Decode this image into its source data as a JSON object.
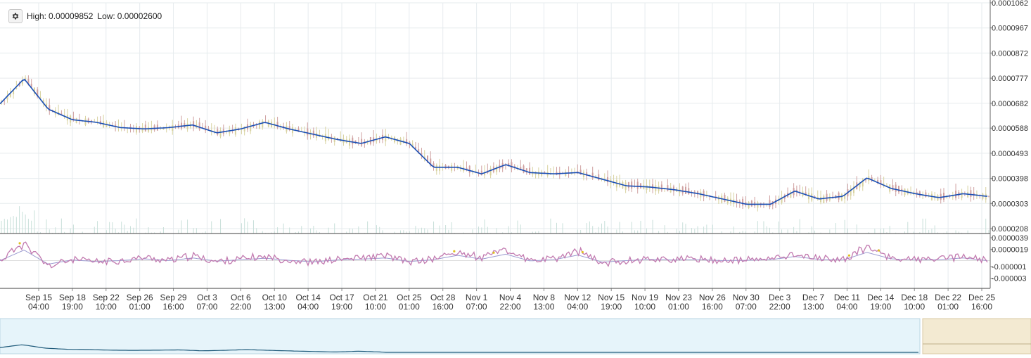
{
  "toolbar": {
    "settings_icon": "gear-icon",
    "high_label": "High:",
    "high_value": "0.00009852",
    "low_label": "Low:",
    "low_value": "0.00002600"
  },
  "colors": {
    "ma_line": "#1a4fb5",
    "candle_up": "#d8d2a0",
    "candle_down": "#cfa0a0",
    "volume": "#c9e0da",
    "osc_main": "#c27ab0",
    "osc_signal": "#9a9ad0",
    "osc_highlight": "#e0c020",
    "grid": "#e6ebee",
    "navigator_fill": "#e6f4fa",
    "navigator_line": "#1f5a7a",
    "navigator_handle": "#f3ead2"
  },
  "chart_data": [
    {
      "type": "line",
      "title": "",
      "y_axis_labels": [
        "0.0001062",
        "0.0000967",
        "0.0000872",
        "0.0000777",
        "0.0000682",
        "0.0000588",
        "0.0000493",
        "0.0000398",
        "0.0000303",
        "0.0000208"
      ],
      "ylim": [
        2.08e-05,
        0.0001062
      ],
      "x_labels": [
        {
          "date": "Sep 15",
          "time": "04:00"
        },
        {
          "date": "Sep 18",
          "time": "19:00"
        },
        {
          "date": "Sep 22",
          "time": "10:00"
        },
        {
          "date": "Sep 26",
          "time": "01:00"
        },
        {
          "date": "Sep 29",
          "time": "16:00"
        },
        {
          "date": "Oct 3",
          "time": "07:00"
        },
        {
          "date": "Oct 6",
          "time": "22:00"
        },
        {
          "date": "Oct 10",
          "time": "13:00"
        },
        {
          "date": "Oct 14",
          "time": "04:00"
        },
        {
          "date": "Oct 17",
          "time": "19:00"
        },
        {
          "date": "Oct 21",
          "time": "10:00"
        },
        {
          "date": "Oct 25",
          "time": "01:00"
        },
        {
          "date": "Oct 28",
          "time": "16:00"
        },
        {
          "date": "Nov 1",
          "time": "07:00"
        },
        {
          "date": "Nov 4",
          "time": "22:00"
        },
        {
          "date": "Nov 8",
          "time": "13:00"
        },
        {
          "date": "Nov 12",
          "time": "04:00"
        },
        {
          "date": "Nov 15",
          "time": "19:00"
        },
        {
          "date": "Nov 19",
          "time": "10:00"
        },
        {
          "date": "Nov 23",
          "time": "01:00"
        },
        {
          "date": "Nov 26",
          "time": "16:00"
        },
        {
          "date": "Nov 30",
          "time": "07:00"
        },
        {
          "date": "Dec 3",
          "time": "22:00"
        },
        {
          "date": "Dec 7",
          "time": "13:00"
        },
        {
          "date": "Dec 11",
          "time": "04:00"
        },
        {
          "date": "Dec 14",
          "time": "19:00"
        },
        {
          "date": "Dec 18",
          "time": "10:00"
        },
        {
          "date": "Dec 22",
          "time": "01:00"
        },
        {
          "date": "Dec 25",
          "time": "16:00"
        }
      ],
      "series": [
        {
          "values": [
            6.8e-05,
            7.75e-05,
            6.6e-05,
            6.2e-05,
            6.1e-05,
            5.9e-05,
            5.85e-05,
            5.9e-05,
            6e-05,
            5.7e-05,
            5.85e-05,
            6.1e-05,
            5.85e-05,
            5.65e-05,
            5.45e-05,
            5.3e-05,
            5.55e-05,
            5.3e-05,
            4.4e-05,
            4.4e-05,
            4.15e-05,
            4.5e-05,
            4.2e-05,
            4.15e-05,
            4.2e-05,
            3.95e-05,
            3.7e-05,
            3.65e-05,
            3.55e-05,
            3.4e-05,
            3.2e-05,
            3e-05,
            3e-05,
            3.5e-05,
            3.2e-05,
            3.3e-05,
            4e-05,
            3.6e-05,
            3.4e-05,
            3.25e-05,
            3.4e-05,
            3.3e-05
          ]
        }
      ]
    },
    {
      "type": "line",
      "title": "",
      "y_axis_labels": [
        "0.0000039",
        "0.0000019",
        "-0.000001",
        "-0.000003"
      ],
      "ylim": [
        -3.9e-06,
        3.9e-06
      ],
      "series": [
        {
          "values": [
            0.0,
            3.6e-06,
            -1.2e-06,
            2e-07,
            -3e-07,
            0.0,
            6e-07,
            0.0,
            9e-07,
            -2e-07,
            3e-07,
            8e-07,
            1e-07,
            -4e-07,
            2e-07,
            5e-07,
            9e-07,
            -3e-07,
            3e-07,
            1.8e-06,
            5e-07,
            2.2e-06,
            -1e-07,
            3e-07,
            1.9e-06,
            -5e-07,
            0.0,
            4e-07,
            2e-07,
            3e-07,
            0.0,
            1e-07,
            3e-07,
            1.4e-06,
            4e-07,
            2e-07,
            2.8e-06,
            6e-07,
            2e-07,
            3e-07,
            9e-07,
            0.0
          ]
        }
      ]
    }
  ]
}
